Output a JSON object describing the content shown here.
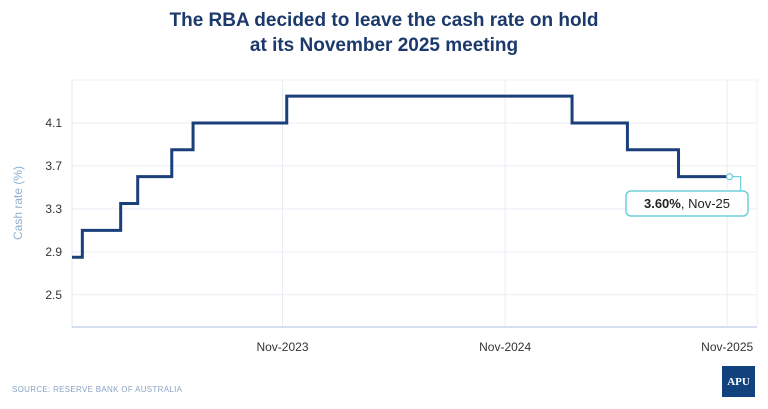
{
  "title_line1": "The RBA decided to leave the cash rate on hold",
  "title_line2": "at its November 2025 meeting",
  "source": "SOURCE: RESERVE BANK OF AUSTRALIA",
  "logo_text": "APU",
  "chart_data": {
    "type": "line",
    "step": true,
    "title": "The RBA decided to leave the cash rate on hold at its November 2025 meeting",
    "xlabel": "",
    "ylabel": "Cash rate (%)",
    "ylim": [
      2.2,
      4.5
    ],
    "yticks": [
      2.5,
      2.9,
      3.3,
      3.7,
      4.1
    ],
    "ytick_labels": [
      "2.5",
      "2.9",
      "3.3",
      "3.7",
      "4.1"
    ],
    "xlim": [
      "2022-11-20",
      "2025-12-20"
    ],
    "xticks": [
      "2023-11-01",
      "2024-11-01",
      "2025-11-01"
    ],
    "xtick_labels": [
      "Nov-2023",
      "Nov-2024",
      "Nov-2025"
    ],
    "grid": true,
    "color": "#1b3f7a",
    "x": [
      "2022-11-20",
      "2022-12-07",
      "2023-02-08",
      "2023-03-08",
      "2023-05-03",
      "2023-06-07",
      "2023-11-08",
      "2025-02-19",
      "2025-05-21",
      "2025-08-13",
      "2025-11-05"
    ],
    "y": [
      2.85,
      3.1,
      3.35,
      3.6,
      3.85,
      4.1,
      4.35,
      4.1,
      3.85,
      3.6,
      3.6
    ],
    "annotation": {
      "value_text": "3.60%",
      "suffix_text": ", Nov-25",
      "border_color": "#6fd0dc"
    }
  }
}
